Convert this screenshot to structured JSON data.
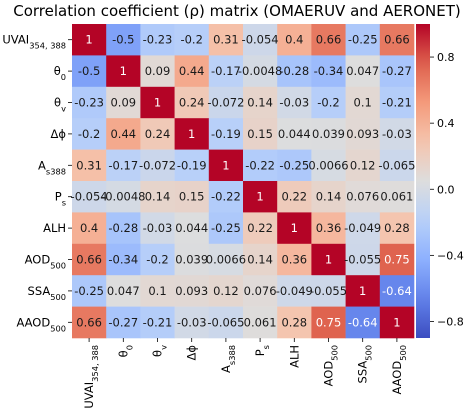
{
  "chart_data": {
    "type": "heatmap",
    "title": "Correlation coefficient (ρ) matrix (OMAERUV and AERONET)",
    "xlabel": "",
    "ylabel": "",
    "labels": [
      {
        "base": "UVAI",
        "sub": "354, 388",
        "sup": ""
      },
      {
        "base": "θ",
        "sub": "0",
        "sup": ""
      },
      {
        "base": "θ",
        "sub": "v",
        "sup": ""
      },
      {
        "base": "Δϕ",
        "sub": "",
        "sup": ""
      },
      {
        "base": "A",
        "sub": "s388",
        "sup": ""
      },
      {
        "base": "P",
        "sub": "s",
        "sup": ""
      },
      {
        "base": "ALH",
        "sub": "",
        "sup": ""
      },
      {
        "base": "AOD",
        "sub": "500",
        "sup": ""
      },
      {
        "base": "SSA",
        "sub": "500",
        "sup": ""
      },
      {
        "base": "AAOD",
        "sub": "500",
        "sup": ""
      }
    ],
    "matrix": [
      [
        1,
        -0.5,
        -0.23,
        -0.2,
        0.31,
        -0.054,
        0.4,
        0.66,
        -0.25,
        0.66
      ],
      [
        -0.5,
        1,
        0.09,
        0.44,
        -0.17,
        -0.0048,
        -0.28,
        -0.34,
        0.047,
        -0.27
      ],
      [
        -0.23,
        0.09,
        1,
        0.24,
        -0.072,
        0.14,
        -0.03,
        -0.2,
        0.1,
        -0.21
      ],
      [
        -0.2,
        0.44,
        0.24,
        1,
        -0.19,
        0.15,
        0.044,
        0.039,
        0.093,
        -0.03
      ],
      [
        0.31,
        -0.17,
        -0.072,
        -0.19,
        1,
        -0.22,
        -0.25,
        0.0066,
        0.12,
        -0.065
      ],
      [
        -0.054,
        -0.0048,
        0.14,
        0.15,
        -0.22,
        1,
        0.22,
        0.14,
        0.076,
        0.061
      ],
      [
        0.4,
        -0.28,
        -0.03,
        0.044,
        -0.25,
        0.22,
        1,
        0.36,
        -0.049,
        0.28
      ],
      [
        0.66,
        -0.34,
        -0.2,
        0.039,
        0.0066,
        0.14,
        0.36,
        1,
        -0.055,
        0.75
      ],
      [
        -0.25,
        0.047,
        0.1,
        0.093,
        0.12,
        0.076,
        -0.049,
        -0.055,
        1,
        -0.64
      ],
      [
        0.66,
        -0.27,
        -0.21,
        -0.03,
        -0.065,
        0.061,
        0.28,
        0.75,
        -0.64,
        1
      ]
    ],
    "cell_labels": [
      [
        "1",
        "-0.5",
        "-0.23",
        "-0.2",
        "0.31",
        "-0.054",
        "0.4",
        "0.66",
        "-0.25",
        "0.66"
      ],
      [
        "-0.5",
        "1",
        "0.09",
        "0.44",
        "-0.17",
        "-0.0048",
        "-0.28",
        "-0.34",
        "0.047",
        "-0.27"
      ],
      [
        "-0.23",
        "0.09",
        "1",
        "0.24",
        "-0.072",
        "0.14",
        "-0.03",
        "-0.2",
        "0.1",
        "-0.21"
      ],
      [
        "-0.2",
        "0.44",
        "0.24",
        "1",
        "-0.19",
        "0.15",
        "0.044",
        "0.039",
        "0.093",
        "-0.03"
      ],
      [
        "0.31",
        "-0.17",
        "-0.072",
        "-0.19",
        "1",
        "-0.22",
        "-0.25",
        "0.0066",
        "0.12",
        "-0.065"
      ],
      [
        "-0.054",
        "-0.0048",
        "0.14",
        "0.15",
        "-0.22",
        "1",
        "0.22",
        "0.14",
        "0.076",
        "0.061"
      ],
      [
        "0.4",
        "-0.28",
        "-0.03",
        "0.044",
        "-0.25",
        "0.22",
        "1",
        "0.36",
        "-0.049",
        "0.28"
      ],
      [
        "0.66",
        "-0.34",
        "-0.2",
        "0.039",
        "0.0066",
        "0.14",
        "0.36",
        "1",
        "-0.055",
        "0.75"
      ],
      [
        "-0.25",
        "0.047",
        "0.1",
        "0.093",
        "0.12",
        "0.076",
        "-0.049",
        "-0.055",
        "1",
        "-0.64"
      ],
      [
        "0.66",
        "-0.27",
        "-0.21",
        "-0.03",
        "-0.065",
        "0.061",
        "0.28",
        "0.75",
        "-0.64",
        "1"
      ]
    ],
    "colorbar": {
      "min": -0.9,
      "max": 1.0,
      "ticks": [
        0.8,
        0.4,
        0.0,
        -0.4,
        -0.8
      ],
      "tick_labels": [
        "0.8",
        "0.4",
        "0.0",
        "−0.4",
        "−0.8"
      ]
    },
    "colormap": "coolwarm",
    "colors": {
      "low": "#3b4cc0",
      "mid": "#dddddd",
      "high": "#b40426",
      "cell_border": "#ffffff"
    },
    "annotation_text_colors": {
      "light": "#ffffff",
      "dark": "#1a1a1a"
    }
  }
}
